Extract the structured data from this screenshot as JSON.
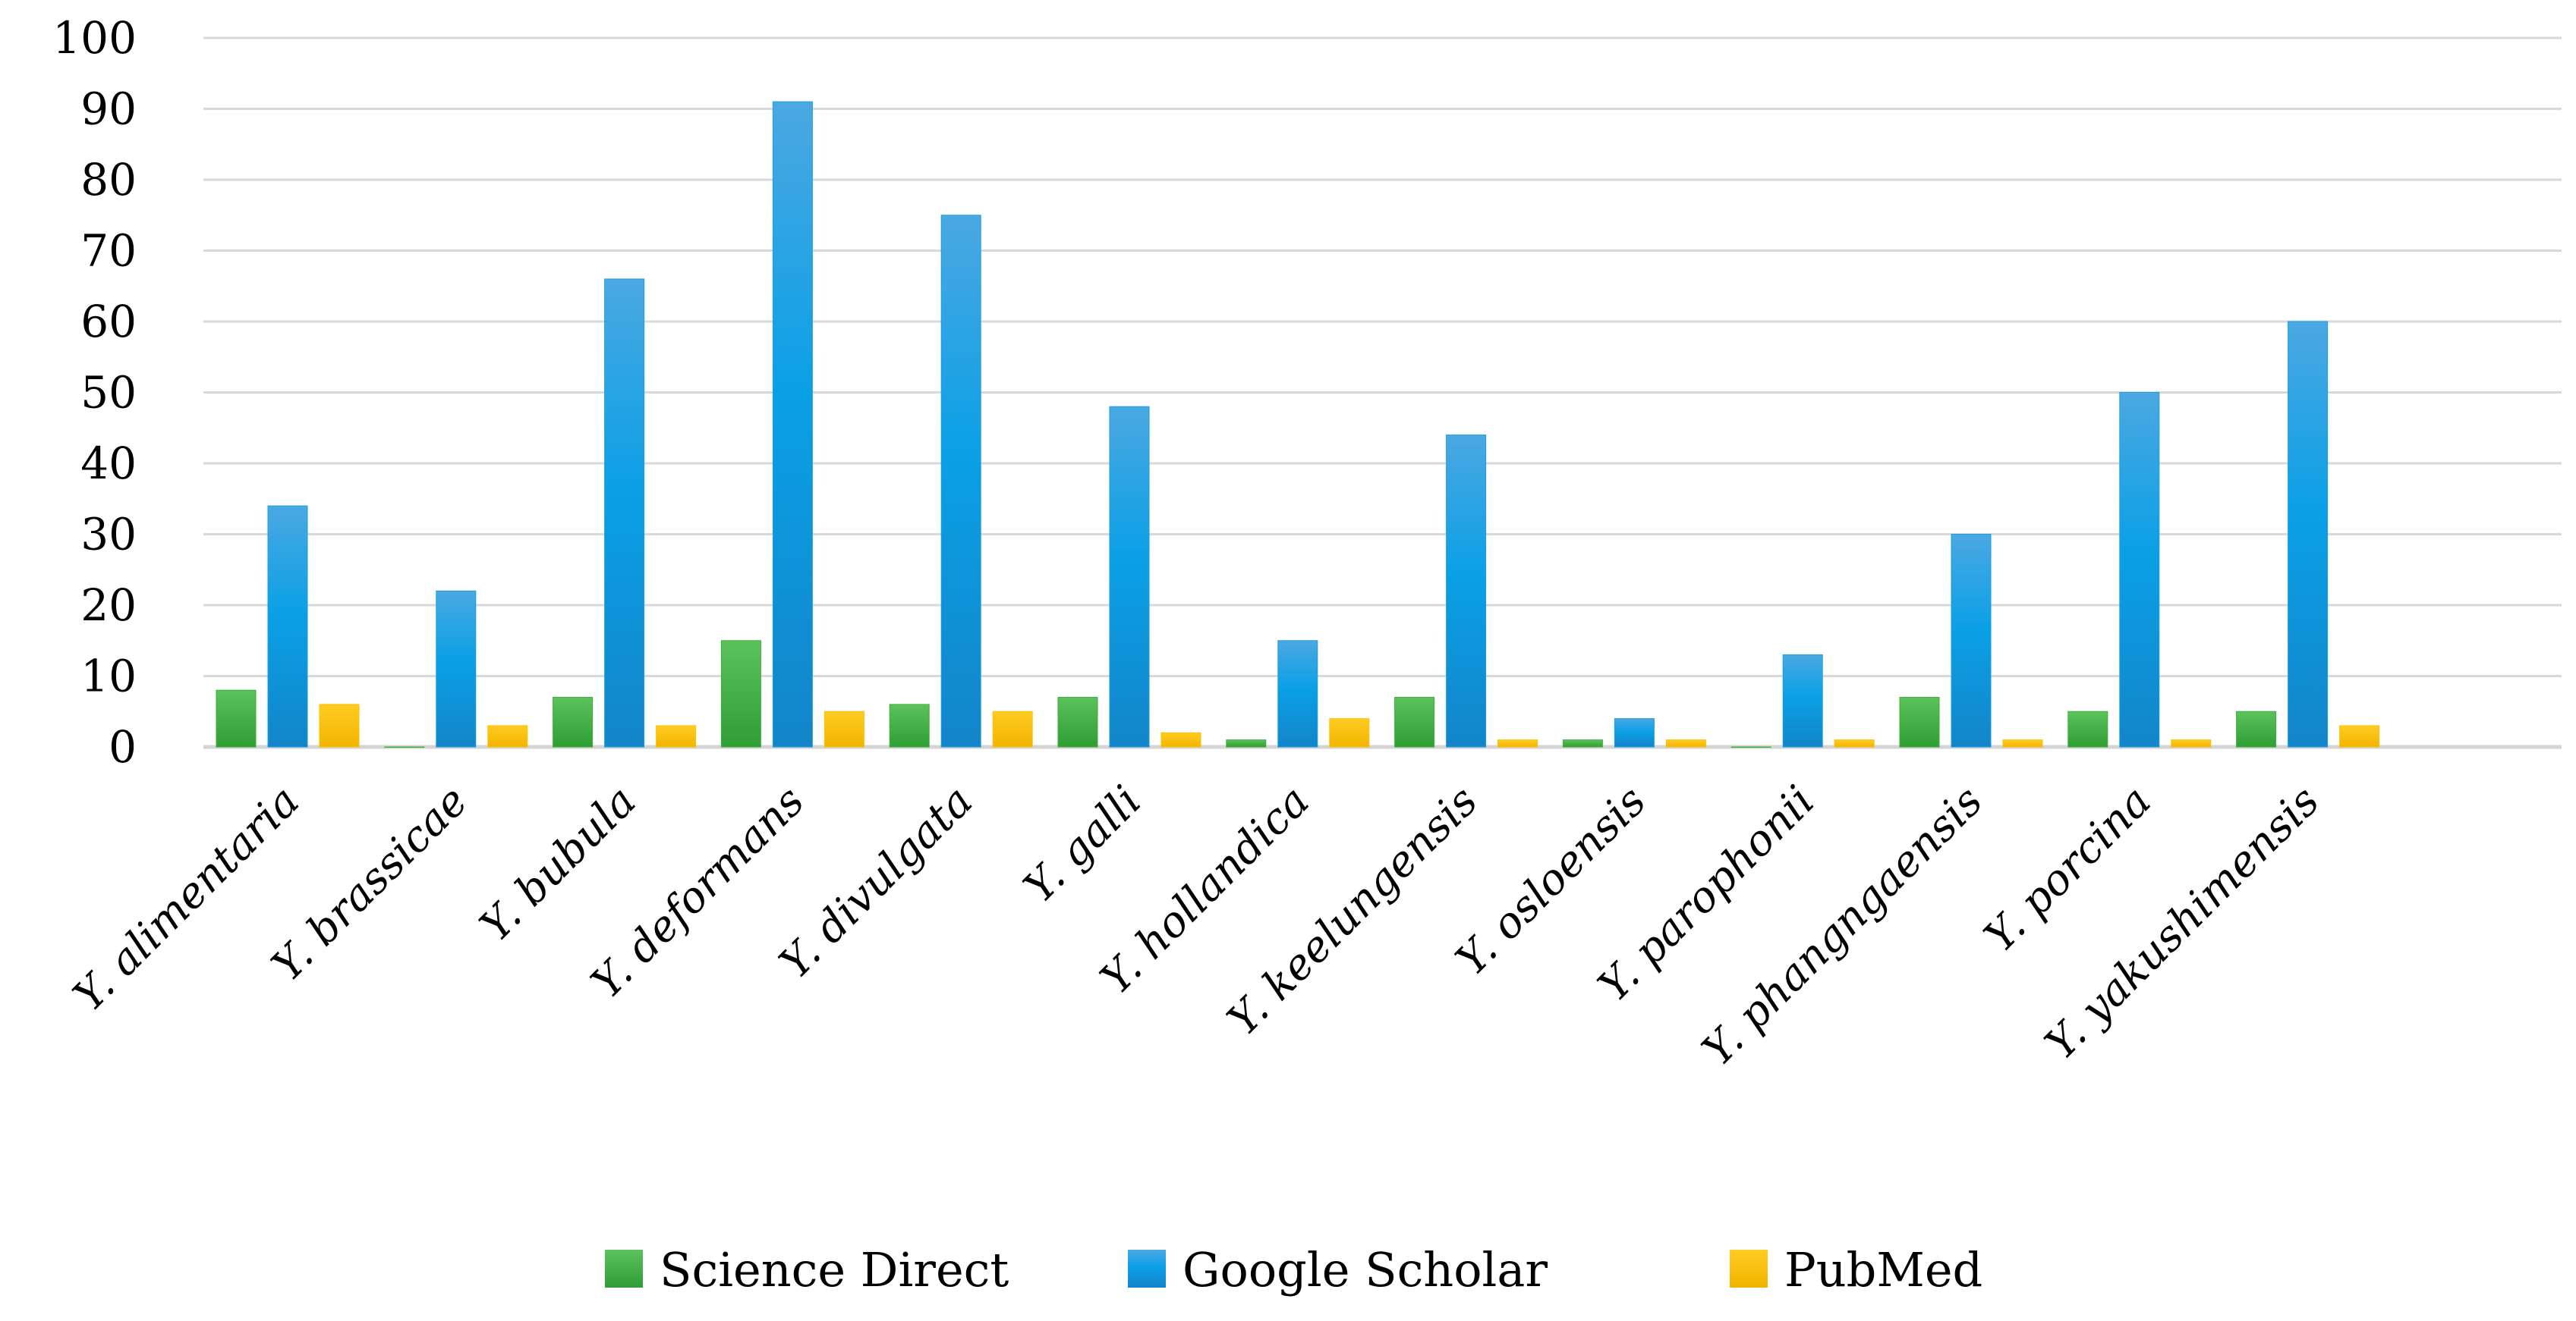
{
  "chart_data": {
    "type": "bar",
    "title": "",
    "xlabel": "",
    "ylabel": "",
    "ylim": [
      0,
      100
    ],
    "yticks": [
      0,
      10,
      20,
      30,
      40,
      50,
      60,
      70,
      80,
      90,
      100
    ],
    "grid": true,
    "legend_position": "bottom",
    "categories": [
      "Y. alimentaria",
      "Y. brassicae",
      "Y. bubula",
      "Y. deformans",
      "Y. divulgata",
      "Y. galli",
      "Y. hollandica",
      "Y. keelungensis",
      "Y. osloensis",
      "Y. parophonii",
      "Y. phangngaensis",
      "Y. porcina",
      "Y. yakushimensis"
    ],
    "series": [
      {
        "name": "Science Direct",
        "color": "#3cae3c",
        "values": [
          8,
          0,
          7,
          15,
          6,
          7,
          1,
          7,
          1,
          0,
          7,
          5,
          5
        ]
      },
      {
        "name": "Google Scholar",
        "color": "#1a9ee0",
        "values": [
          34,
          22,
          66,
          91,
          75,
          48,
          15,
          44,
          4,
          13,
          30,
          50,
          60
        ]
      },
      {
        "name": "PubMed",
        "color": "#ffc000",
        "values": [
          6,
          3,
          3,
          5,
          5,
          2,
          4,
          1,
          1,
          1,
          1,
          1,
          3
        ]
      }
    ]
  }
}
